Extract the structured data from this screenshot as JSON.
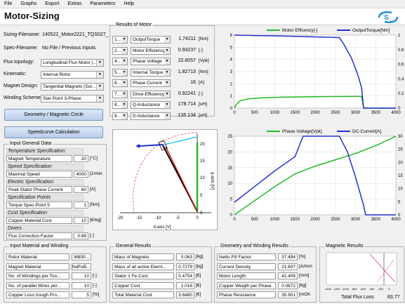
{
  "menu": [
    "File",
    "Graphs",
    "Export",
    "Extras",
    "Parameters",
    "Help"
  ],
  "app_title": "Motor-Sizing",
  "left": {
    "sizing_filename_label": "Sizing-Filename:",
    "sizing_filename_value": "140522_Motor2221_TQS027_",
    "spec_filename_label": "Spec-Filename:",
    "spec_filename_value": "No File / Previous Inputs",
    "flux_topology_label": "Flux topology:",
    "flux_topology_value": "Longitudinal Flux Motor (...",
    "kinematic_label": "Kinematic:",
    "kinematic_value": "Internal Rotor",
    "magnet_design_label": "Magnet Design:",
    "magnet_design_value": "Tangential Magnets (Sur...",
    "winding_scheme_label": "Winding Scheme:",
    "winding_scheme_value": "Star Point 3-Phase",
    "geometry_button": "Geometry / Magnetic Circle",
    "speedcurve_button": "Speedcurve Calculation"
  },
  "general_data": {
    "title": "Input General Data",
    "rows": [
      {
        "type": "section",
        "text": "Temperature Specification:"
      },
      {
        "type": "field",
        "label": "Magnet Temperature",
        "value": "20",
        "unit": "[°C]"
      },
      {
        "type": "section",
        "text": "Speed Specification:"
      },
      {
        "type": "field",
        "label": "Maximal Speed",
        "value": "4000",
        "unit": "[1/min"
      },
      {
        "type": "section",
        "text": "Electric Specification:"
      },
      {
        "type": "field",
        "label": "Peak Stator Phase Current",
        "value": "60",
        "unit": "[A]"
      },
      {
        "type": "section",
        "text": "Specification Points"
      },
      {
        "type": "field",
        "label": "Torque Spec-Point 5",
        "value": "1",
        "unit": "[Nm]"
      },
      {
        "type": "section",
        "text": "Cost Specification"
      },
      {
        "type": "field",
        "label": "Copper Material Cost",
        "value": "10",
        "unit": "[€/kg]"
      },
      {
        "type": "section",
        "text": "Divers"
      },
      {
        "type": "field",
        "label": "Flux Correction Factor",
        "value": "0.89",
        "unit": "[-]"
      }
    ]
  },
  "results_of_motor": {
    "title": "Results of Motor",
    "rows": [
      {
        "num": "1...",
        "name": "OutputTorque",
        "value": "1.74211",
        "unit": "[Nm]"
      },
      {
        "num": "2...",
        "name": "Motor Efficiency",
        "value": "0.93237",
        "unit": "[-]"
      },
      {
        "num": "4...",
        "name": "Phase Voltage",
        "value": "22.8057",
        "unit": "[Vpk]"
      },
      {
        "num": "5...",
        "name": "Internal Torque",
        "value": "1.82713",
        "unit": "[Nm]"
      },
      {
        "num": "6...",
        "name": "Phase Current",
        "value": "16",
        "unit": "[A]"
      },
      {
        "num": "7...",
        "name": "Drive-Efficiency",
        "value": "0.92241",
        "unit": "[-]"
      },
      {
        "num": "8...",
        "name": "Q-Inductance",
        "value": "178.714",
        "unit": "[uH]"
      },
      {
        "num": "8...",
        "name": "D-Inductance",
        "value": "135.134",
        "unit": "[uH]"
      }
    ]
  },
  "phasor": {
    "ylabel": "q-axis [V]",
    "xlabel": "d-axis [V]",
    "xticks": [
      "-20",
      "-15",
      "-10",
      "-5",
      "0"
    ],
    "yticks": [
      "20",
      "15",
      "10",
      "5",
      "0"
    ]
  },
  "chart_data": [
    {
      "type": "line",
      "legend": [
        "Motor Efficency[-]",
        "OutputTorque[Nm]"
      ],
      "x": [
        0,
        500,
        1000,
        1500,
        2000,
        2500,
        3000,
        3500,
        4000
      ],
      "xticks": [
        "0",
        "500",
        "1000",
        "1500",
        "2000",
        "2500",
        "3000",
        "3500",
        "4000"
      ],
      "ylim": [
        0,
        6
      ],
      "yticks_left": [
        "0",
        "1",
        "2",
        "3",
        "4",
        "5",
        "6"
      ],
      "yticks_right": [
        "0",
        "0.2",
        "0.4",
        "0.6",
        "0.8",
        "1"
      ],
      "series": [
        {
          "name": "Motor Efficency[-]",
          "color": "#22bb22",
          "points": [
            [
              0,
              0
            ],
            [
              40,
              0.3
            ],
            [
              150,
              0.62
            ],
            [
              300,
              0.74
            ],
            [
              500,
              0.81
            ],
            [
              800,
              0.86
            ],
            [
              1200,
              0.9
            ],
            [
              1600,
              0.92
            ],
            [
              2000,
              0.94
            ],
            [
              2400,
              0.95
            ],
            [
              2700,
              0.96
            ],
            [
              3000,
              0.97
            ],
            [
              3150,
              0.97
            ],
            [
              3200,
              0
            ],
            [
              4000,
              0
            ]
          ]
        },
        {
          "name": "OutputTorque[Nm]",
          "color": "#2233cc",
          "points": [
            [
              0,
              6
            ],
            [
              1500,
              5.9
            ],
            [
              2600,
              5.8
            ],
            [
              2700,
              5.3
            ],
            [
              2900,
              4.1
            ],
            [
              3050,
              2.8
            ],
            [
              3150,
              1.7
            ],
            [
              3200,
              0
            ],
            [
              4000,
              0
            ]
          ]
        }
      ]
    },
    {
      "type": "line",
      "legend": [
        "Phase Voltage[Vpk]",
        "DC-Current[A]"
      ],
      "x": [
        0,
        500,
        1000,
        1500,
        2000,
        2500,
        3000,
        3500,
        4000
      ],
      "xticks": [
        "0",
        "500",
        "1000",
        "1500",
        "2000",
        "2500",
        "3000",
        "3500",
        "4000"
      ],
      "ylim": [
        0,
        25
      ],
      "yticks_left": [
        "0",
        "5",
        "10",
        "15",
        "20",
        "25"
      ],
      "yticks_right": [
        "0",
        "5",
        "10",
        "15",
        "20",
        "25",
        "30"
      ],
      "series": [
        {
          "name": "Phase Voltage[Vpk]",
          "color": "#22bb22",
          "points": [
            [
              0,
              0
            ],
            [
              1000,
              9
            ],
            [
              1500,
              13
            ],
            [
              2000,
              15.5
            ],
            [
              2500,
              17.5
            ],
            [
              3000,
              19.5
            ],
            [
              3500,
              22
            ],
            [
              4000,
              25
            ]
          ]
        },
        {
          "name": "DC-Current[A]",
          "color": "#2233cc",
          "points": [
            [
              0,
              4
            ],
            [
              500,
              9
            ],
            [
              1000,
              14
            ],
            [
              1500,
              18.5
            ],
            [
              1700,
              25
            ],
            [
              2600,
              25
            ],
            [
              2800,
              20
            ],
            [
              3000,
              12
            ],
            [
              3200,
              3
            ],
            [
              3250,
              0
            ],
            [
              4000,
              0
            ]
          ]
        }
      ]
    }
  ],
  "material": {
    "title": "Input Material and Winding",
    "rows": [
      {
        "label": "Rotor Material",
        "value": "M800..."
      },
      {
        "label": "Magnet Material",
        "value": "NdFeB..."
      },
      {
        "label": "No. of Windings per Too...",
        "value": "10",
        "unit": "[-]"
      },
      {
        "label": "No. of parallel Wires per...",
        "value": "10",
        "unit": "[-]"
      },
      {
        "label": "Copper Loss trough Pro...",
        "value": "5",
        "unit": "[%]"
      }
    ]
  },
  "general_results": {
    "title": "General Results",
    "rows": [
      {
        "label": "Mass of Magnets",
        "value": "0.063",
        "unit": "[kg]"
      },
      {
        "label": "Mass of all active Elemt...",
        "value": "0.7279",
        "unit": "[kg]"
      },
      {
        "label": "Stator 1 Fe Cost",
        "value": "0.4754",
        "unit": "[€]"
      },
      {
        "label": "Copper Cost",
        "value": "2.016",
        "unit": "[€]"
      },
      {
        "label": "Total Material Cost",
        "value": "3.6480",
        "unit": "[€]"
      }
    ]
  },
  "geometry_results": {
    "title": "Geometry and Winding Results",
    "rows": [
      {
        "label": "Netto Fill Factor",
        "value": "37.494",
        "unit": "[%]"
      },
      {
        "label": "Current Density",
        "value": "21.607",
        "unit": "[A/mm"
      },
      {
        "label": "Motor Length",
        "value": "42.406",
        "unit": "[mm]"
      },
      {
        "label": "Copper Weigth per Phase",
        "value": "0.0672",
        "unit": "[kg]"
      },
      {
        "label": "Phase Resistance",
        "value": "35.901",
        "unit": "[mOh"
      }
    ]
  },
  "magnetic_results": {
    "title": "Magnetic Results",
    "xticks": [
      "-1400",
      "-1200",
      "-1000",
      "-800",
      "-600",
      "-400",
      "-200",
      "0"
    ],
    "total_flux_label": "Total Flux Loss",
    "total_flux_value": "83.77"
  }
}
